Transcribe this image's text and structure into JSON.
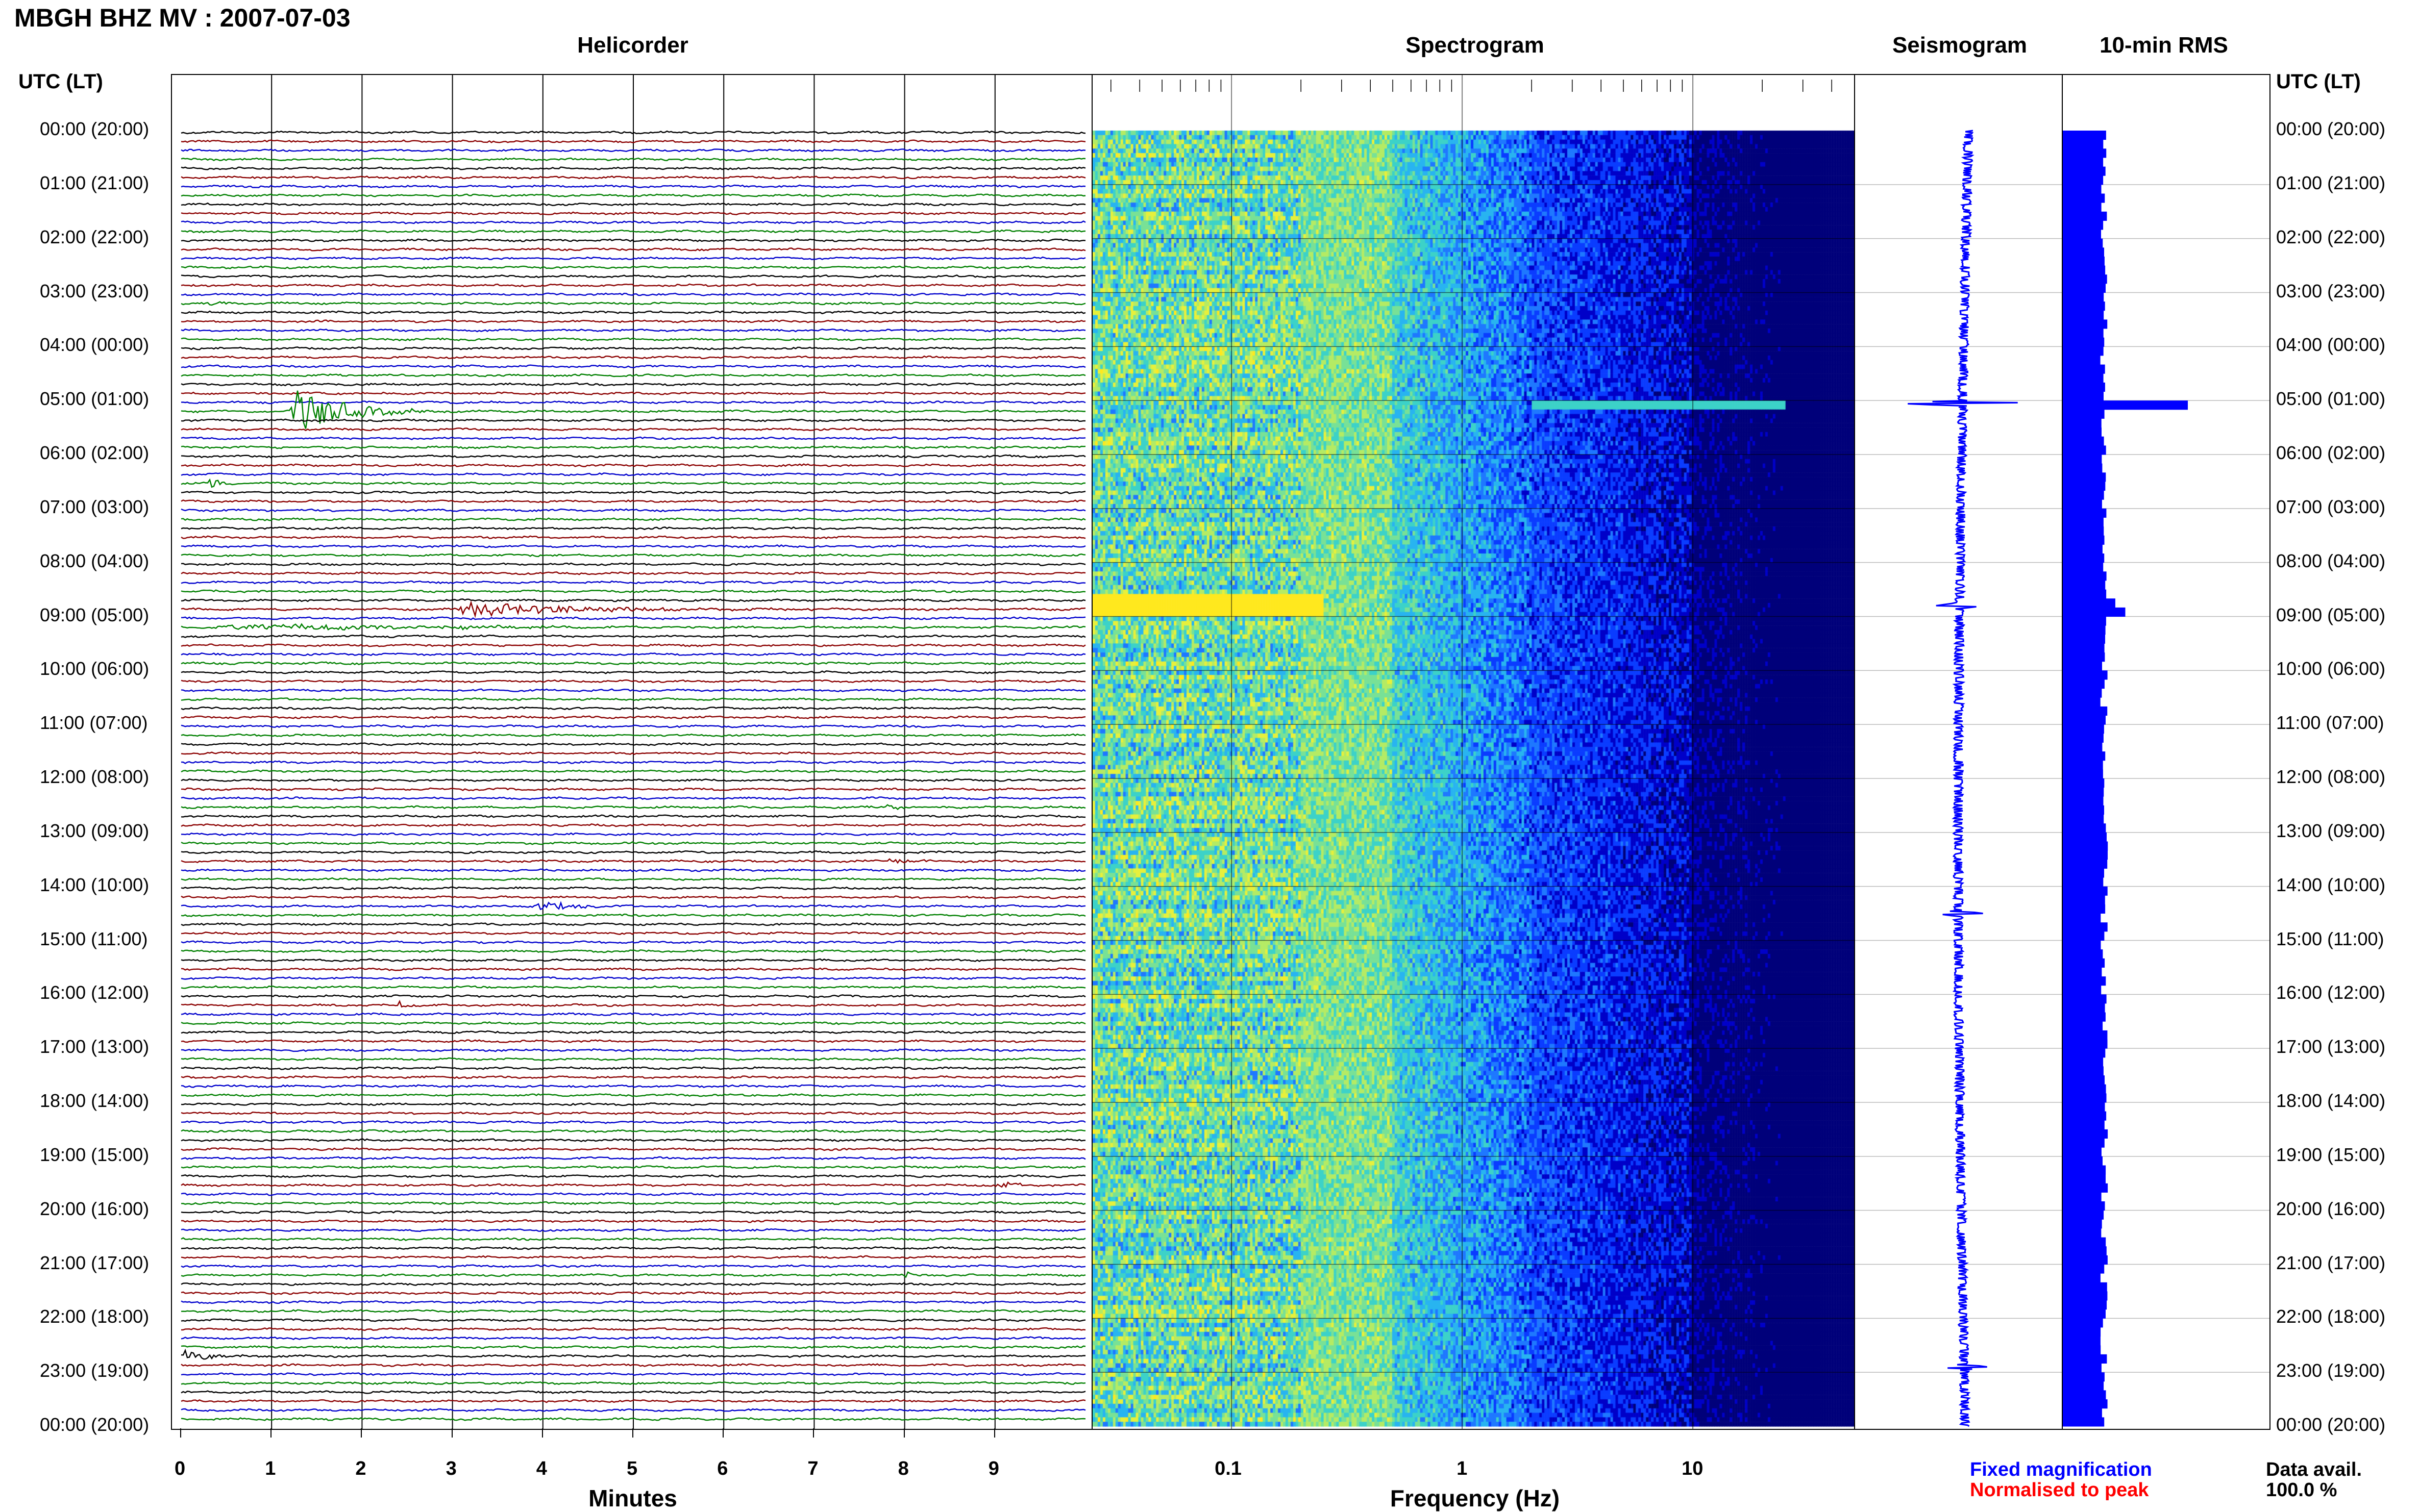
{
  "header": {
    "title": "MBGH BHZ MV : 2007-07-03",
    "utc_label_left": "UTC (LT)",
    "utc_label_right": "UTC (LT)"
  },
  "panels": {
    "helicorder_title": "Helicorder",
    "spectrogram_title": "Spectrogram",
    "seismogram_title": "Seismogram",
    "rms_title": "10-min RMS"
  },
  "axes": {
    "minutes_label": "Minutes",
    "frequency_label": "Frequency (Hz)"
  },
  "legend": {
    "fixed": "Fixed magnification",
    "normalised": "Normalised to peak",
    "data_avail_label": "Data avail.",
    "data_avail_value": "100.0 %"
  },
  "colors": {
    "trace_colors": [
      "#000000",
      "#8b0000",
      "#0000cd",
      "#008000"
    ],
    "fixed_color": "#0000ff",
    "normalised_color": "#ff0000",
    "rms_color": "#0000ff"
  },
  "chart_data": [
    {
      "type": "line",
      "title": "Helicorder",
      "xlabel": "Minutes",
      "xlim": [
        0,
        10
      ],
      "x_ticks": [
        "0",
        "1",
        "2",
        "3",
        "4",
        "5",
        "6",
        "7",
        "8",
        "9"
      ],
      "rows_per_hour": 6,
      "time_labels": [
        "00:00 (20:00)",
        "01:00 (21:00)",
        "02:00 (22:00)",
        "03:00 (23:00)",
        "04:00 (00:00)",
        "05:00 (01:00)",
        "06:00 (02:00)",
        "07:00 (03:00)",
        "08:00 (04:00)",
        "09:00 (05:00)",
        "10:00 (06:00)",
        "11:00 (07:00)",
        "12:00 (08:00)",
        "13:00 (09:00)",
        "14:00 (10:00)",
        "15:00 (11:00)",
        "16:00 (12:00)",
        "17:00 (13:00)",
        "18:00 (14:00)",
        "19:00 (15:00)",
        "20:00 (16:00)",
        "21:00 (17:00)",
        "22:00 (18:00)",
        "23:00 (19:00)",
        "00:00 (20:00)"
      ],
      "events": [
        {
          "row": 19,
          "minute": 0.3,
          "duration": 0.3,
          "amp": 0.4
        },
        {
          "row": 26,
          "minute": 6.5,
          "duration": 0.2,
          "amp": 0.4
        },
        {
          "row": 31,
          "minute": 1.2,
          "duration": 1.5,
          "amp": 2.4
        },
        {
          "row": 39,
          "minute": 0.3,
          "duration": 0.3,
          "amp": 0.8
        },
        {
          "row": 53,
          "minute": 3.0,
          "duration": 4.0,
          "amp": 0.7
        },
        {
          "row": 55,
          "minute": 0.3,
          "duration": 9.0,
          "amp": 0.3
        },
        {
          "row": 75,
          "minute": 7.8,
          "duration": 0.3,
          "amp": 0.4
        },
        {
          "row": 81,
          "minute": 7.8,
          "duration": 0.6,
          "amp": 0.4
        },
        {
          "row": 86,
          "minute": 3.9,
          "duration": 1.0,
          "amp": 0.6
        },
        {
          "row": 97,
          "minute": 2.4,
          "duration": 0.3,
          "amp": 0.4
        },
        {
          "row": 117,
          "minute": 9.0,
          "duration": 0.5,
          "amp": 0.4
        },
        {
          "row": 127,
          "minute": 8.0,
          "duration": 0.3,
          "amp": 0.3
        },
        {
          "row": 136,
          "minute": 0.0,
          "duration": 1.0,
          "amp": 0.6
        }
      ]
    },
    {
      "type": "heatmap",
      "title": "Spectrogram",
      "xlabel": "Frequency (Hz)",
      "x_scale": "log",
      "xlim": [
        0.025,
        50
      ],
      "x_ticks": [
        "0.1",
        "1",
        "10"
      ],
      "colormap": [
        "#00007a",
        "#0000c8",
        "#0a3cff",
        "#1e78ff",
        "#28b4f0",
        "#3cd2c8",
        "#78e196",
        "#b4eb64",
        "#e6f03c",
        "#ffe81e"
      ]
    },
    {
      "type": "line",
      "title": "Seismogram",
      "mode": "Normalised to peak",
      "events_hours": [
        5.05,
        8.8,
        14.5,
        22.9
      ]
    },
    {
      "type": "bar",
      "title": "10-min RMS",
      "spikes": [
        {
          "hour": 5.05,
          "value": 1.0
        },
        {
          "hour": 8.75,
          "value": 0.42
        },
        {
          "hour": 8.9,
          "value": 0.5
        },
        {
          "hour": 9.0,
          "value": 0.3
        },
        {
          "hour": 14.6,
          "value": 0.25
        }
      ],
      "baseline": 0.33
    }
  ]
}
